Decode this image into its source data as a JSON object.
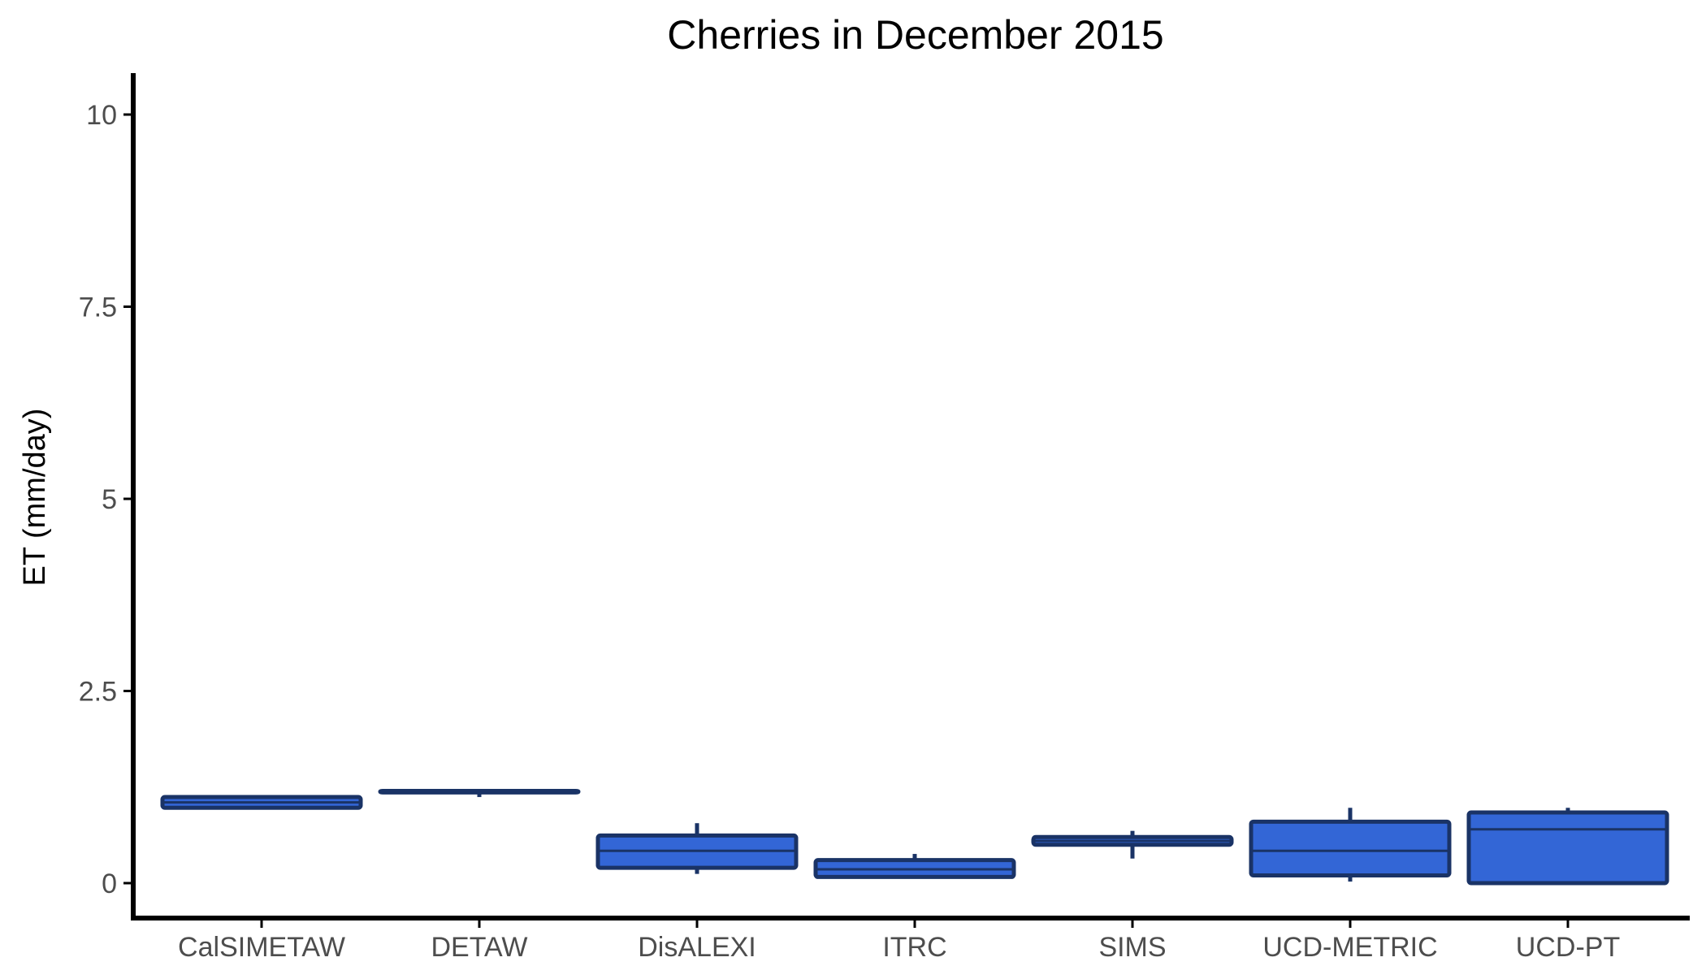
{
  "chart_data": {
    "type": "boxplot",
    "title": "Cherries in December 2015",
    "xlabel": "",
    "ylabel": "ET (mm/day)",
    "ylim": [
      -0.45,
      10.5
    ],
    "yticks": [
      0,
      2.5,
      5,
      7.5,
      10
    ],
    "ytick_labels": [
      "0",
      "2.5",
      "5",
      "7.5",
      "10"
    ],
    "grid": false,
    "legend": "none",
    "colors": {
      "box_fill": "#3366d6",
      "box_stroke": "#1a3366",
      "axis": "#000000",
      "tick_text": "#4d4d4d"
    },
    "categories": [
      "CalSIMETAW",
      "DETAW",
      "DisALEXI",
      "ITRC",
      "SIMS",
      "UCD-METRIC",
      "UCD-PT"
    ],
    "boxes": [
      {
        "category": "CalSIMETAW",
        "whisker_low": 0.98,
        "q1": 0.98,
        "median": 1.05,
        "q3": 1.12,
        "whisker_high": 1.12
      },
      {
        "category": "DETAW",
        "whisker_low": 1.12,
        "q1": 1.18,
        "median": 1.2,
        "q3": 1.2,
        "whisker_high": 1.2
      },
      {
        "category": "DisALEXI",
        "whisker_low": 0.12,
        "q1": 0.2,
        "median": 0.42,
        "q3": 0.62,
        "whisker_high": 0.78
      },
      {
        "category": "ITRC",
        "whisker_low": 0.08,
        "q1": 0.08,
        "median": 0.18,
        "q3": 0.3,
        "whisker_high": 0.38
      },
      {
        "category": "SIMS",
        "whisker_low": 0.32,
        "q1": 0.5,
        "median": 0.55,
        "q3": 0.6,
        "whisker_high": 0.68
      },
      {
        "category": "UCD-METRIC",
        "whisker_low": 0.02,
        "q1": 0.1,
        "median": 0.42,
        "q3": 0.8,
        "whisker_high": 0.98
      },
      {
        "category": "UCD-PT",
        "whisker_low": 0.0,
        "q1": 0.0,
        "median": 0.7,
        "q3": 0.92,
        "whisker_high": 0.98
      }
    ]
  }
}
